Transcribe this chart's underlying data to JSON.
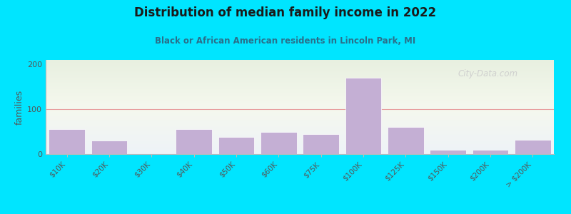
{
  "title": "Distribution of median family income in 2022",
  "subtitle": "Black or African American residents in Lincoln Park, MI",
  "categories": [
    "$10K",
    "$20K",
    "$30K",
    "$40K",
    "$50K",
    "$60K",
    "$75K",
    "$100K",
    "$125K",
    "$150K",
    "$200K",
    "> $200K"
  ],
  "values": [
    55,
    30,
    0,
    55,
    38,
    50,
    45,
    170,
    60,
    10,
    10,
    32
  ],
  "bar_color": "#c4afd4",
  "bar_edge_color": "#ffffff",
  "background_color": "#00e5ff",
  "title_color": "#1a1a1a",
  "subtitle_color": "#2a6f8a",
  "ylabel": "families",
  "ylim": [
    0,
    210
  ],
  "yticks": [
    0,
    100,
    200
  ],
  "grid_color": "#e8a0a0",
  "watermark": "City-Data.com"
}
